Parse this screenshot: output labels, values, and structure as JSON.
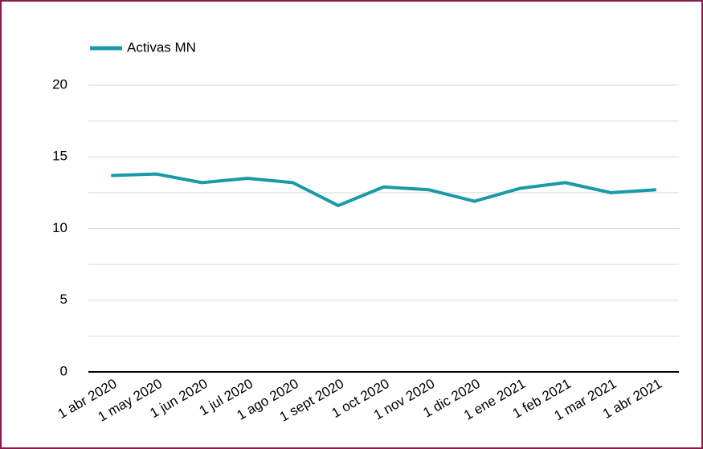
{
  "chart_data": {
    "type": "line",
    "categories": [
      "1 abr 2020",
      "1 may 2020",
      "1 jun 2020",
      "1 jul 2020",
      "1 ago 2020",
      "1 sept 2020",
      "1 oct 2020",
      "1 nov 2020",
      "1 dic 2020",
      "1 ene 2021",
      "1 feb 2021",
      "1 mar 2021",
      "1 abr 2021"
    ],
    "series": [
      {
        "name": "Activas MN",
        "color": "#1a9aa5",
        "values": [
          13.7,
          13.8,
          13.2,
          13.5,
          13.2,
          11.6,
          12.9,
          12.7,
          11.9,
          12.8,
          13.2,
          12.5,
          12.7
        ]
      }
    ],
    "ylim": [
      0,
      20
    ],
    "yticks": [
      0,
      5,
      10,
      15,
      20
    ],
    "minor_yticks": [
      2.5,
      7.5,
      12.5,
      17.5
    ],
    "grid": true,
    "legend": "top-left"
  }
}
